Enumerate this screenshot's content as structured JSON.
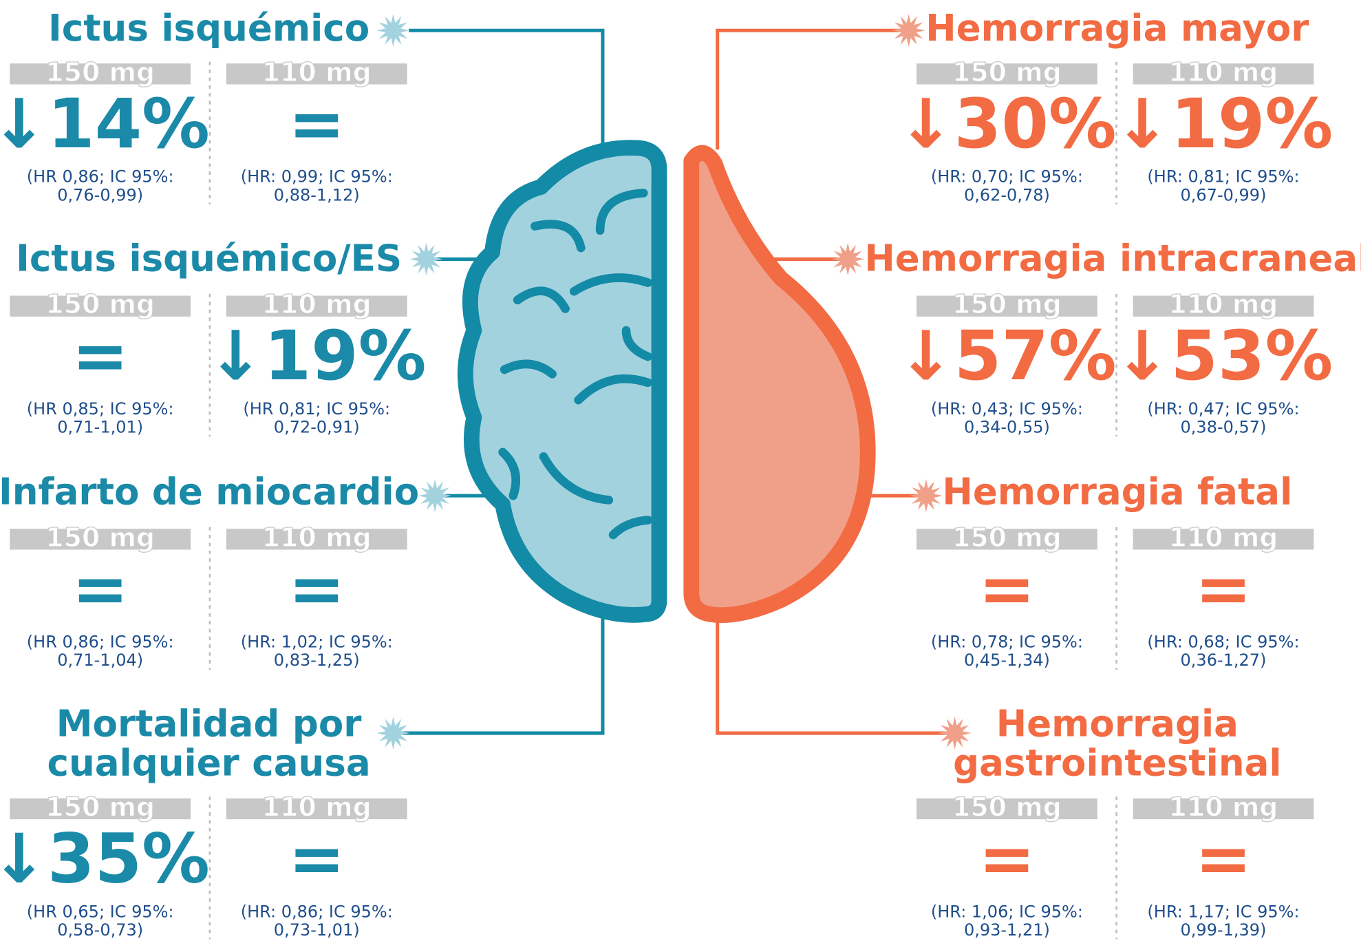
{
  "left": [
    {
      "title_lines": [
        "Ictus isquémico"
      ],
      "columns": [
        {
          "dose": "150 mg",
          "result": "↓14%",
          "hr": [
            "(HR 0,86; IC 95%:",
            "0,76-0,99)"
          ]
        },
        {
          "dose": "110 mg",
          "result": "=",
          "hr": [
            "(HR: 0,99; IC 95%:",
            "0,88-1,12)"
          ]
        }
      ]
    },
    {
      "title_lines": [
        "Ictus isquémico/ES"
      ],
      "columns": [
        {
          "dose": "150 mg",
          "result": "=",
          "hr": [
            "(HR 0,85; IC 95%:",
            "0,71-1,01)"
          ]
        },
        {
          "dose": "110 mg",
          "result": "↓19%",
          "hr": [
            "(HR 0,81; IC 95%:",
            "0,72-0,91)"
          ]
        }
      ]
    },
    {
      "title_lines": [
        "Infarto de miocardio"
      ],
      "columns": [
        {
          "dose": "150 mg",
          "result": "=",
          "hr": [
            "(HR 0,86; IC 95%:",
            "0,71-1,04)"
          ]
        },
        {
          "dose": "110 mg",
          "result": "=",
          "hr": [
            "(HR: 1,02; IC 95%:",
            "0,83-1,25)"
          ]
        }
      ]
    },
    {
      "title_lines": [
        "Mortalidad por",
        "cualquier causa"
      ],
      "columns": [
        {
          "dose": "150 mg",
          "result": "↓35%",
          "hr": [
            "(HR 0,65; IC 95%:",
            "0,58-0,73)"
          ]
        },
        {
          "dose": "110 mg",
          "result": "=",
          "hr": [
            "(HR: 0,86; IC 95%:",
            "0,73-1,01)"
          ]
        }
      ]
    }
  ],
  "right": [
    {
      "title_lines": [
        "Hemorragia mayor"
      ],
      "columns": [
        {
          "dose": "150 mg",
          "result": "↓30%",
          "hr": [
            "(HR: 0,70; IC 95%:",
            "0,62-0,78)"
          ]
        },
        {
          "dose": "110 mg",
          "result": "↓19%",
          "hr": [
            "(HR: 0,81; IC 95%:",
            "0,67-0,99)"
          ]
        }
      ]
    },
    {
      "title_lines": [
        "Hemorragia intracraneal"
      ],
      "columns": [
        {
          "dose": "150 mg",
          "result": "↓57%",
          "hr": [
            "(HR: 0,43; IC 95%:",
            "0,34-0,55)"
          ]
        },
        {
          "dose": "110 mg",
          "result": "↓53%",
          "hr": [
            "(HR: 0,47; IC 95%:",
            "0,38-0,57)"
          ]
        }
      ]
    },
    {
      "title_lines": [
        "Hemorragia fatal"
      ],
      "columns": [
        {
          "dose": "150 mg",
          "result": "=",
          "hr": [
            "(HR: 0,78; IC 95%:",
            "0,45-1,34)"
          ]
        },
        {
          "dose": "110 mg",
          "result": "=",
          "hr": [
            "(HR: 0,68; IC 95%:",
            "0,36-1,27)"
          ]
        }
      ]
    },
    {
      "title_lines": [
        "Hemorragia",
        "gastrointestinal"
      ],
      "columns": [
        {
          "dose": "150 mg",
          "result": "=",
          "hr": [
            "(HR: 1,06; IC 95%:",
            "0,93-1,21)"
          ]
        },
        {
          "dose": "110 mg",
          "result": "=",
          "hr": [
            "(HR: 1,17; IC 95%:",
            "0,99-1,39)"
          ]
        }
      ]
    }
  ]
}
